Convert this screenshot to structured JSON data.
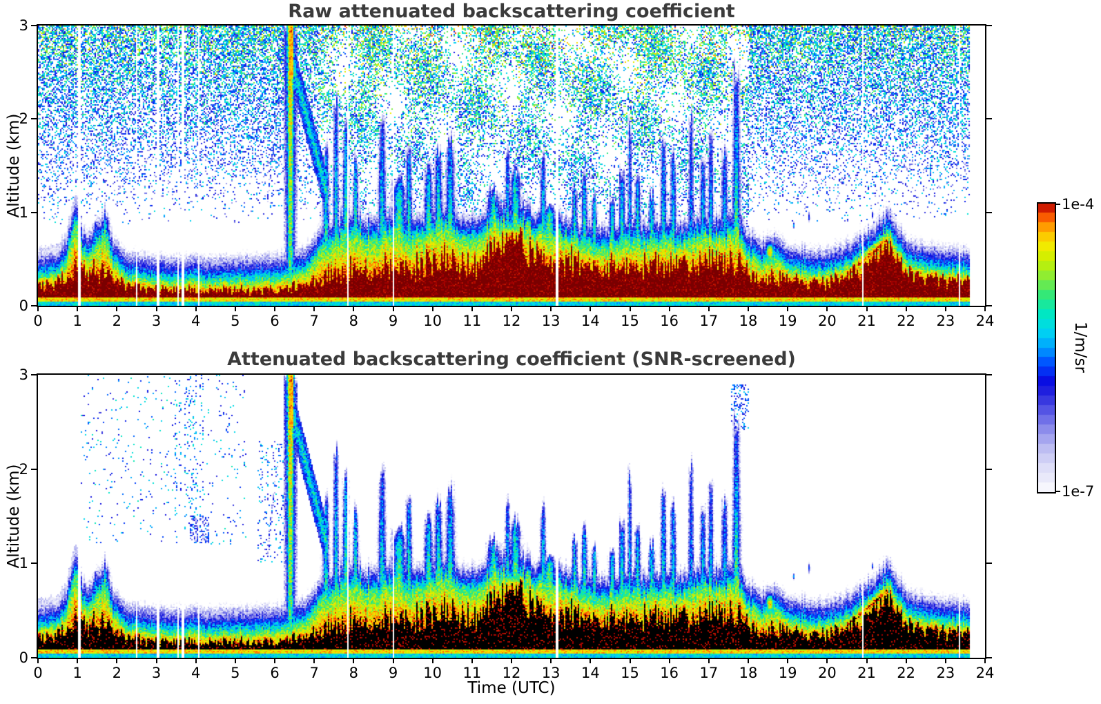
{
  "xlabel_note": "lidar attenuated backscatter quicklook, two stacked heatmap panels sharing one logarithmic colorbar",
  "colorbar": {
    "max_label": "1e-4",
    "min_label": "1e-7",
    "unit": "1/m/sr"
  },
  "chart_data": {
    "type": "heatmap",
    "panels": [
      {
        "id": "raw",
        "mode": "raw",
        "title": "Raw attenuated backscattering coefficient"
      },
      {
        "id": "screened",
        "mode": "screened",
        "title": "Attenuated backscattering coefficient (SNR-screened)"
      }
    ],
    "x": {
      "label": "Time (UTC)",
      "range": [
        0,
        24
      ],
      "ticks": [
        "0",
        "1",
        "2",
        "3",
        "4",
        "5",
        "6",
        "7",
        "8",
        "9",
        "10",
        "11",
        "12",
        "13",
        "14",
        "15",
        "16",
        "17",
        "18",
        "19",
        "20",
        "21",
        "22",
        "23",
        "24"
      ]
    },
    "y": {
      "label": "Altitude (km)",
      "range": [
        0,
        3
      ],
      "ticks": [
        "0",
        "1",
        "2",
        "3"
      ]
    },
    "scale": {
      "type": "log",
      "vmin": 1e-07,
      "vmax": 0.0001,
      "unit": "1/m/sr"
    },
    "colormap": [
      [
        0.0,
        "#ffffff"
      ],
      [
        0.03,
        "#f0f0fb"
      ],
      [
        0.09,
        "#dcdcf8"
      ],
      [
        0.15,
        "#bdbdf2"
      ],
      [
        0.21,
        "#9292ec"
      ],
      [
        0.27,
        "#5f5fe6"
      ],
      [
        0.33,
        "#2d2ddd"
      ],
      [
        0.38,
        "#0a0ae0"
      ],
      [
        0.44,
        "#0048ff"
      ],
      [
        0.5,
        "#00a0ff"
      ],
      [
        0.56,
        "#00d8f0"
      ],
      [
        0.62,
        "#00e8c0"
      ],
      [
        0.68,
        "#30e87a"
      ],
      [
        0.74,
        "#86ec3a"
      ],
      [
        0.8,
        "#c8f000"
      ],
      [
        0.85,
        "#f2ea00"
      ],
      [
        0.895,
        "#ffc000"
      ],
      [
        0.935,
        "#ff7a00"
      ],
      [
        0.97,
        "#f03000"
      ],
      [
        1.0,
        "#a00000"
      ]
    ],
    "saturated_color_raw": "#7a0000",
    "saturated_color_screened": "#000000",
    "scene": {
      "data_end": 23.6,
      "gaps": [
        1.05,
        2.5,
        3.05,
        3.55,
        3.67,
        4.07,
        7.85,
        9.0,
        13.15,
        20.9,
        23.35
      ],
      "bl_t": [
        0.0,
        0.4,
        0.7,
        0.95,
        1.05,
        1.2,
        1.35,
        1.5,
        1.7,
        1.9,
        2.3,
        3.0,
        4.0,
        5.0,
        6.0,
        6.8,
        7.2,
        7.6,
        8.0,
        8.5,
        9.0,
        9.5,
        10.0,
        10.4,
        10.8,
        11.2,
        11.5,
        11.9,
        12.3,
        12.6,
        13.0,
        13.4,
        13.8,
        14.2,
        14.6,
        15.0,
        15.4,
        15.8,
        16.2,
        16.6,
        17.0,
        17.4,
        17.7,
        18.0,
        18.3,
        18.7,
        19.0,
        19.5,
        20.0,
        20.4,
        20.8,
        21.2,
        21.5,
        21.7,
        22.0,
        22.5,
        23.0,
        23.6
      ],
      "bl_h": [
        0.3,
        0.32,
        0.45,
        0.9,
        0.7,
        0.5,
        0.55,
        0.65,
        0.8,
        0.45,
        0.3,
        0.26,
        0.26,
        0.26,
        0.28,
        0.35,
        0.6,
        0.7,
        0.75,
        0.7,
        0.75,
        0.7,
        0.8,
        0.85,
        0.7,
        0.7,
        0.9,
        0.85,
        0.85,
        0.75,
        0.75,
        0.7,
        0.65,
        0.6,
        0.65,
        0.7,
        0.65,
        0.7,
        0.65,
        0.7,
        0.75,
        0.7,
        0.8,
        0.55,
        0.45,
        0.5,
        0.38,
        0.35,
        0.35,
        0.4,
        0.5,
        0.62,
        0.78,
        0.66,
        0.46,
        0.4,
        0.36,
        0.34
      ],
      "bl_core": [
        0.2,
        0.22,
        0.28,
        0.4,
        0.35,
        0.28,
        0.3,
        0.32,
        0.35,
        0.28,
        0.2,
        0.16,
        0.15,
        0.15,
        0.16,
        0.2,
        0.28,
        0.32,
        0.35,
        0.33,
        0.38,
        0.36,
        0.42,
        0.45,
        0.38,
        0.4,
        0.6,
        0.65,
        0.68,
        0.5,
        0.45,
        0.42,
        0.4,
        0.38,
        0.4,
        0.42,
        0.4,
        0.42,
        0.4,
        0.42,
        0.45,
        0.42,
        0.48,
        0.35,
        0.28,
        0.3,
        0.26,
        0.25,
        0.25,
        0.3,
        0.38,
        0.5,
        0.66,
        0.52,
        0.34,
        0.28,
        0.27,
        0.26
      ],
      "events": [
        [
          0.95,
          0.1,
          0.95,
          -5.9,
          -4.55
        ],
        [
          1.45,
          0.09,
          0.8,
          -5.7,
          -5.0
        ],
        [
          1.72,
          0.1,
          0.9,
          -5.5,
          -5.05
        ],
        [
          6.4,
          0.1,
          3.02,
          -4.25,
          -4.95
        ],
        [
          7.3,
          0.08,
          1.65,
          -5.6,
          -4.75
        ],
        [
          7.55,
          0.07,
          2.1,
          -5.7,
          -4.85
        ],
        [
          7.8,
          0.08,
          1.8,
          -5.6,
          -4.75
        ],
        [
          8.05,
          0.07,
          1.45,
          -5.5,
          -4.7
        ],
        [
          8.72,
          0.1,
          1.95,
          -5.8,
          -4.85
        ],
        [
          9.15,
          0.16,
          1.3,
          -5.3,
          -4.45
        ],
        [
          9.4,
          0.08,
          1.6,
          -5.6,
          -4.7
        ],
        [
          9.9,
          0.11,
          1.4,
          -5.5,
          -4.55
        ],
        [
          10.15,
          0.1,
          1.6,
          -5.6,
          -4.65
        ],
        [
          10.45,
          0.12,
          1.72,
          -5.7,
          -4.7
        ],
        [
          11.55,
          0.18,
          1.15,
          -5.4,
          -4.4
        ],
        [
          11.9,
          0.07,
          1.58,
          -5.7,
          -4.8
        ],
        [
          12.1,
          0.14,
          1.35,
          -5.4,
          -4.5
        ],
        [
          12.8,
          0.08,
          1.52,
          -5.7,
          -4.8
        ],
        [
          12.95,
          0.18,
          0.95,
          -5.1,
          -4.5
        ],
        [
          13.6,
          0.07,
          1.15,
          -5.4,
          -4.7
        ],
        [
          13.85,
          0.08,
          1.28,
          -5.5,
          -4.75
        ],
        [
          14.1,
          0.07,
          1.1,
          -5.4,
          -4.7
        ],
        [
          14.55,
          0.08,
          1.05,
          -5.3,
          -4.65
        ],
        [
          14.8,
          0.08,
          1.35,
          -5.5,
          -4.75
        ],
        [
          15.0,
          0.06,
          1.9,
          -5.9,
          -5.05
        ],
        [
          15.2,
          0.08,
          1.28,
          -5.5,
          -4.75
        ],
        [
          15.55,
          0.08,
          1.12,
          -5.4,
          -4.7
        ],
        [
          15.85,
          0.08,
          1.65,
          -5.7,
          -4.95
        ],
        [
          16.1,
          0.08,
          1.52,
          -5.6,
          -4.9
        ],
        [
          16.55,
          0.08,
          1.95,
          -6.0,
          -5.15
        ],
        [
          16.85,
          0.08,
          1.52,
          -5.7,
          -4.95
        ],
        [
          17.05,
          0.08,
          1.85,
          -5.9,
          -5.05
        ],
        [
          17.4,
          0.09,
          1.62,
          -5.8,
          -5.0
        ],
        [
          17.7,
          0.1,
          2.48,
          -5.85,
          -4.75
        ]
      ],
      "tails": [
        [
          6.45,
          2.6,
          7.35,
          1.15,
          0.5,
          -5.15,
          1.0
        ],
        [
          5.82,
          1.15,
          6.12,
          2.25,
          0.14,
          -5.75,
          0.55
        ],
        [
          20.55,
          0.35,
          21.5,
          0.7,
          0.15,
          -4.1,
          1.0
        ]
      ],
      "blobs": [
        [
          18.55,
          0.14,
          0.57,
          0.13,
          -4.35
        ],
        [
          19.15,
          0.04,
          0.86,
          0.05,
          -5.5
        ],
        [
          19.55,
          0.035,
          0.95,
          0.09,
          -5.55
        ],
        [
          21.15,
          0.05,
          0.97,
          0.06,
          -5.7
        ]
      ],
      "caps": [
        [
          1.55,
          7.25,
          0.24,
          -6.55
        ],
        [
          18.2,
          23.6,
          0.16,
          -6.6
        ],
        [
          0.0,
          1.0,
          0.3,
          -6.7
        ]
      ],
      "speckle": [
        [
          1.0,
          5.3,
          1.2,
          3.0,
          0.03,
          -5.6,
          0.5
        ],
        [
          3.45,
          4.2,
          1.5,
          3.0,
          0.09,
          -5.55,
          0.4
        ],
        [
          3.85,
          4.35,
          1.22,
          1.5,
          0.4,
          -6.0,
          0.5
        ],
        [
          5.55,
          6.3,
          1.0,
          2.3,
          0.1,
          -5.7,
          0.5
        ],
        [
          17.55,
          18.0,
          2.4,
          2.9,
          0.25,
          -5.7,
          0.4
        ]
      ]
    }
  }
}
